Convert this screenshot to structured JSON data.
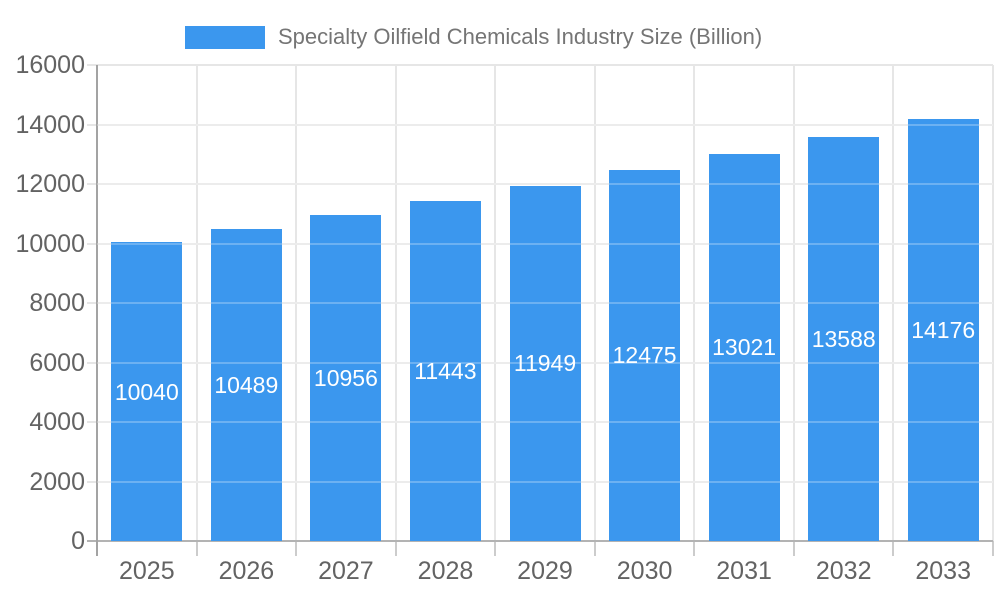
{
  "legend": {
    "label": "Specialty Oilfield Chemicals Industry Size (Billion)"
  },
  "chart_data": {
    "type": "bar",
    "title": "Specialty Oilfield Chemicals Industry Size (Billion)",
    "categories": [
      "2025",
      "2026",
      "2027",
      "2028",
      "2029",
      "2030",
      "2031",
      "2032",
      "2033"
    ],
    "values": [
      10040,
      10489,
      10956,
      11443,
      11949,
      12475,
      13021,
      13588,
      14176
    ],
    "series_name": "Specialty Oilfield Chemicals Industry Size (Billion)",
    "xlabel": "",
    "ylabel": "",
    "ylim": [
      0,
      16000
    ],
    "yticks": [
      0,
      2000,
      4000,
      6000,
      8000,
      10000,
      12000,
      14000,
      16000
    ],
    "grid": true,
    "legend_position": "top",
    "bar_labels_inside": true,
    "colors": {
      "bar": "#3b97ee",
      "bar_label": "#ffffff",
      "axis_text": "#636363",
      "title_text": "#757575",
      "gridline": "#e6e6e6",
      "axis_line": "#a3a3a3",
      "baseline": "#b3b3b3",
      "tick": "#cccccc",
      "background": "#ffffff"
    }
  }
}
